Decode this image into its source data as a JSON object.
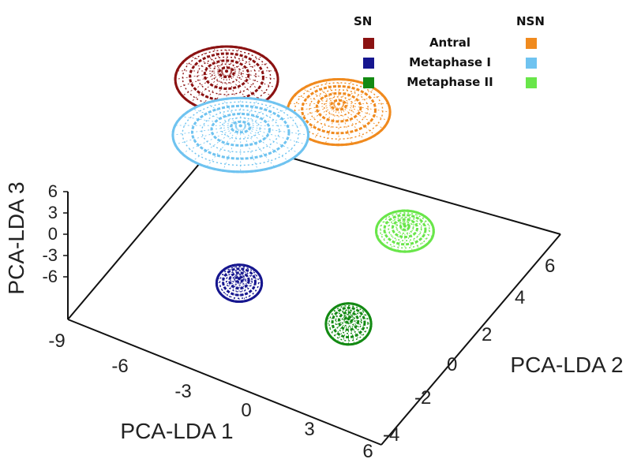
{
  "chart_data": {
    "type": "3d-scatter",
    "axes": {
      "x": {
        "label": "PCA-LDA 1",
        "ticks": [
          "-9",
          "-6",
          "-3",
          "0",
          "3",
          "6"
        ],
        "range": [
          -9,
          6
        ]
      },
      "y": {
        "label": "PCA-LDA 2",
        "ticks": [
          "-4",
          "-2",
          "0",
          "2",
          "4",
          "6"
        ],
        "range": [
          -4,
          6
        ]
      },
      "z": {
        "label": "PCA-LDA 3",
        "ticks": [
          "6",
          "3",
          "0",
          "-3",
          "-6"
        ],
        "range": [
          -6,
          6
        ]
      }
    },
    "legend": {
      "position": "top-right",
      "column_headers": [
        "SN",
        "NSN"
      ],
      "rows": [
        {
          "label": "Antral",
          "sn_color": "#8b1212",
          "nsn_color": "#f08a1e"
        },
        {
          "label": "Metaphase I",
          "sn_color": "#16168f",
          "nsn_color": "#6fc3f0"
        },
        {
          "label": "Metaphase II",
          "sn_color": "#138a13",
          "nsn_color": "#69e64a"
        }
      ]
    },
    "series": [
      {
        "name": "Antral",
        "group": "SN",
        "color": "#8b1212",
        "center": [
          -8,
          5,
          2
        ],
        "radii": [
          2.5,
          1.6
        ]
      },
      {
        "name": "Antral",
        "group": "NSN",
        "color": "#f08a1e",
        "center": [
          -3,
          5.5,
          2
        ],
        "radii": [
          2.5,
          1.6
        ]
      },
      {
        "name": "Metaphase I",
        "group": "NSN",
        "color": "#6fc3f0",
        "center": [
          -5.5,
          2.5,
          3
        ],
        "radii": [
          3.3,
          1.8
        ]
      },
      {
        "name": "Metaphase I",
        "group": "SN",
        "color": "#16168f",
        "center": [
          -3,
          -1,
          -3
        ],
        "radii": [
          1.1,
          0.9
        ]
      },
      {
        "name": "Metaphase II",
        "group": "NSN",
        "color": "#69e64a",
        "center": [
          2,
          3,
          -1
        ],
        "radii": [
          1.4,
          1.0
        ]
      },
      {
        "name": "Metaphase II",
        "group": "SN",
        "color": "#138a13",
        "center": [
          1.5,
          0,
          -5
        ],
        "radii": [
          1.1,
          1.0
        ]
      }
    ]
  }
}
